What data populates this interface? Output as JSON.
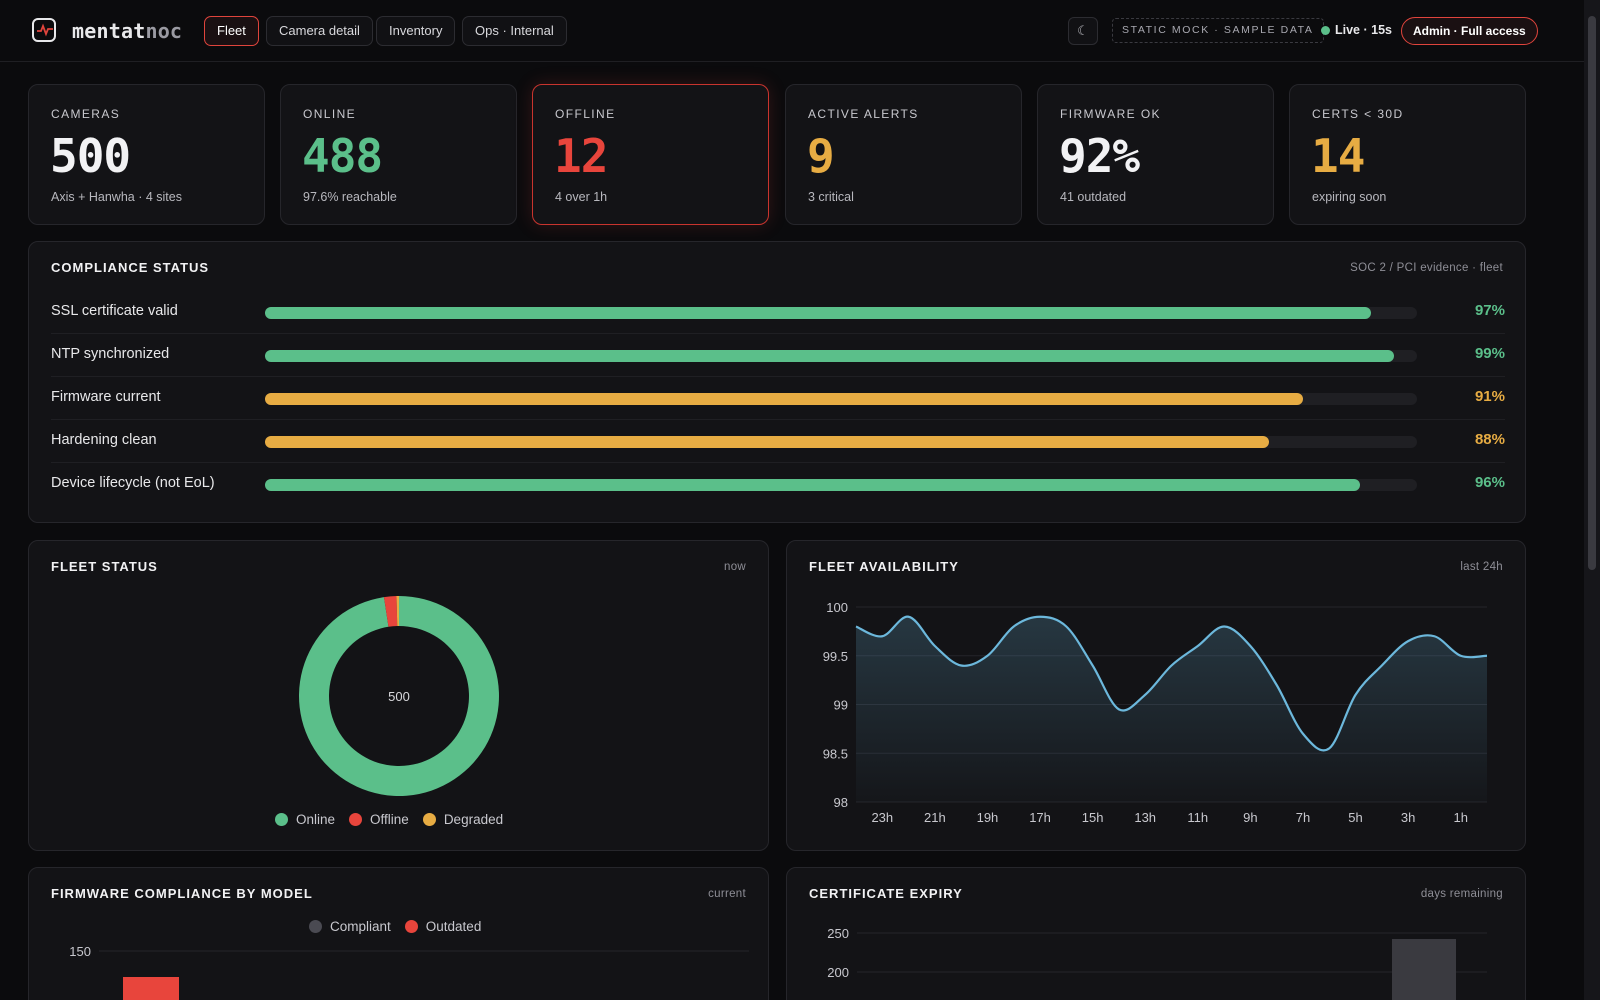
{
  "brand": {
    "name_a": "mentat",
    "name_b": "noc"
  },
  "nav": {
    "tabs": [
      {
        "label": "Fleet",
        "active": true
      },
      {
        "label": "Camera detail"
      },
      {
        "label": "Inventory"
      },
      {
        "label": "Ops · Internal"
      }
    ]
  },
  "header": {
    "theme_icon": "moon-icon",
    "theme_glyph": "☾",
    "mock_badge": "STATIC MOCK · SAMPLE DATA",
    "live_label": "Live · 15s",
    "role_badge": "Admin · Full access"
  },
  "kpis": [
    {
      "label": "CAMERAS",
      "value": "500",
      "sub": "Axis + Hanwha · 4 sites",
      "color": "#f2f2f4"
    },
    {
      "label": "ONLINE",
      "value": "488",
      "sub": "97.6% reachable",
      "color": "#5bbf8a"
    },
    {
      "label": "OFFLINE",
      "value": "12",
      "sub": "4 over 1h",
      "color": "#e8453c"
    },
    {
      "label": "ACTIVE ALERTS",
      "value": "9",
      "sub": "3 critical",
      "color": "#e7ac43"
    },
    {
      "label": "FIRMWARE OK",
      "value": "92%",
      "sub": "41 outdated",
      "color": "#f2f2f4"
    },
    {
      "label": "CERTS < 30D",
      "value": "14",
      "sub": "expiring soon",
      "color": "#e7ac43"
    }
  ],
  "compliance": {
    "title": "COMPLIANCE STATUS",
    "meta": "SOC 2 / PCI evidence · fleet",
    "items": [
      {
        "label": "SSL certificate valid",
        "percent": 97,
        "pct_label": "97%",
        "color": "#5bbf8a"
      },
      {
        "label": "NTP synchronized",
        "percent": 99,
        "pct_label": "99%",
        "color": "#5bbf8a"
      },
      {
        "label": "Firmware current",
        "percent": 91,
        "pct_label": "91%",
        "color": "#e7ac43"
      },
      {
        "label": "Hardening clean",
        "percent": 88,
        "pct_label": "88%",
        "color": "#e7ac43"
      },
      {
        "label": "Device lifecycle (not EoL)",
        "percent": 96,
        "pct_label": "96%",
        "color": "#5bbf8a"
      }
    ]
  },
  "fleet_status": {
    "title": "FLEET STATUS",
    "meta": "now"
  },
  "fleet_availability": {
    "title": "FLEET AVAILABILITY",
    "meta": "last 24h"
  },
  "firmware": {
    "title": "FIRMWARE COMPLIANCE BY MODEL",
    "meta": "current"
  },
  "certs": {
    "title": "CERTIFICATE EXPIRY",
    "meta": "days remaining"
  },
  "chart_data": [
    {
      "type": "pie",
      "donut": true,
      "center_label": "500",
      "labels": [
        "Online",
        "Offline",
        "Degraded"
      ],
      "values": [
        488,
        10,
        2
      ],
      "colors": [
        "#5bbf8a",
        "#e8453c",
        "#e7ac43"
      ],
      "legend": "bottom"
    },
    {
      "type": "area",
      "x": [
        "24h",
        "23h",
        "22h",
        "21h",
        "20h",
        "19h",
        "18h",
        "17h",
        "16h",
        "15h",
        "14h",
        "13h",
        "12h",
        "11h",
        "10h",
        "9h",
        "8h",
        "7h",
        "6h",
        "5h",
        "4h",
        "3h",
        "2h",
        "1h",
        "0h"
      ],
      "xticks": [
        "23h",
        "21h",
        "19h",
        "17h",
        "15h",
        "13h",
        "11h",
        "9h",
        "7h",
        "5h",
        "3h",
        "1h"
      ],
      "values": [
        99.8,
        99.7,
        99.9,
        99.6,
        99.4,
        99.5,
        99.8,
        99.9,
        99.8,
        99.4,
        98.95,
        99.1,
        99.4,
        99.6,
        99.8,
        99.6,
        99.2,
        98.7,
        98.55,
        99.1,
        99.4,
        99.65,
        99.7,
        99.5,
        99.5
      ],
      "ylim": [
        98,
        100
      ],
      "yticks": [
        "98",
        "98.5",
        "99",
        "99.5",
        "100"
      ],
      "color": "#6cb8dc",
      "grid": true
    },
    {
      "type": "bar",
      "legend": [
        "Compliant",
        "Outdated"
      ],
      "colors": [
        "#4a4a52",
        "#e8453c"
      ],
      "yticks_visible": [
        "150"
      ]
    },
    {
      "type": "bar",
      "yticks_visible": [
        "250",
        "200"
      ],
      "color": "#3a3a40"
    }
  ]
}
